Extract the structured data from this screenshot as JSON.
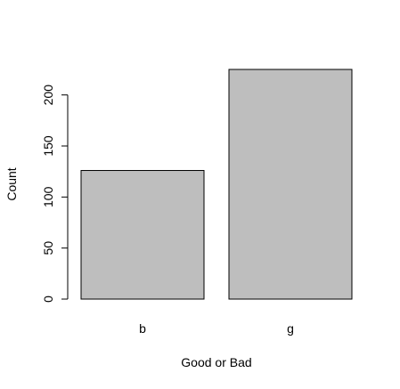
{
  "chart_data": {
    "type": "bar",
    "categories": [
      "b",
      "g"
    ],
    "values": [
      126,
      225
    ],
    "xlabel": "Good or Bad",
    "ylabel": "Count",
    "ylim": [
      0,
      225
    ],
    "yticks": [
      0,
      50,
      100,
      150,
      200
    ],
    "grid": false,
    "legend": "none",
    "bar_fill": "#bebebe",
    "bar_stroke": "#000000"
  }
}
